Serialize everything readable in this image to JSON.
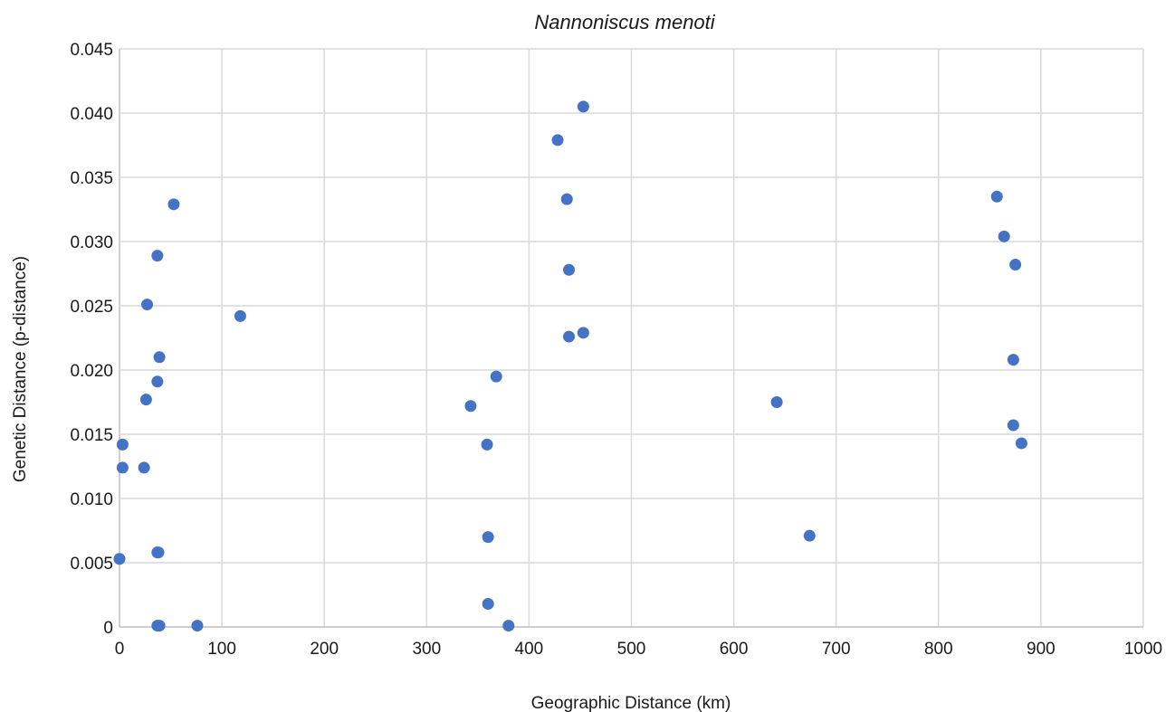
{
  "chart_data": {
    "type": "scatter",
    "title": "Nannoniscus menoti",
    "xlabel": "Geographic Distance (km)",
    "ylabel": "Genetic Distance (p-distance)",
    "xlim": [
      0,
      1000
    ],
    "ylim": [
      0,
      0.045
    ],
    "x_ticks": [
      0,
      100,
      200,
      300,
      400,
      500,
      600,
      700,
      800,
      900,
      1000
    ],
    "x_tick_labels": [
      "0",
      "100",
      "200",
      "300",
      "400",
      "500",
      "600",
      "700",
      "800",
      "900",
      "1000"
    ],
    "y_ticks": [
      0,
      0.005,
      0.01,
      0.015,
      0.02,
      0.025,
      0.03,
      0.035,
      0.04,
      0.045
    ],
    "y_tick_labels": [
      "0",
      "0.005",
      "0.010",
      "0.015",
      "0.020",
      "0.025",
      "0.030",
      "0.035",
      "0.040",
      "0.045"
    ],
    "grid": true,
    "marker_color": "#4472c4",
    "series": [
      {
        "points": [
          {
            "x": 0,
            "y": 0.0053
          },
          {
            "x": 3,
            "y": 0.0142
          },
          {
            "x": 3,
            "y": 0.0124
          },
          {
            "x": 24,
            "y": 0.0124
          },
          {
            "x": 26,
            "y": 0.0177
          },
          {
            "x": 27,
            "y": 0.0251
          },
          {
            "x": 37,
            "y": 0.0289
          },
          {
            "x": 37,
            "y": 0.0191
          },
          {
            "x": 39,
            "y": 0.021
          },
          {
            "x": 37,
            "y": 0.0058
          },
          {
            "x": 38,
            "y": 0.0058
          },
          {
            "x": 37,
            "y": 0.0001
          },
          {
            "x": 39,
            "y": 0.0001
          },
          {
            "x": 53,
            "y": 0.0329
          },
          {
            "x": 76,
            "y": 0.0001
          },
          {
            "x": 118,
            "y": 0.0242
          },
          {
            "x": 343,
            "y": 0.0172
          },
          {
            "x": 359,
            "y": 0.0142
          },
          {
            "x": 360,
            "y": 0.007
          },
          {
            "x": 360,
            "y": 0.0018
          },
          {
            "x": 368,
            "y": 0.0195
          },
          {
            "x": 380,
            "y": 0.0001
          },
          {
            "x": 428,
            "y": 0.0379
          },
          {
            "x": 437,
            "y": 0.0333
          },
          {
            "x": 439,
            "y": 0.0278
          },
          {
            "x": 439,
            "y": 0.0226
          },
          {
            "x": 453,
            "y": 0.0229
          },
          {
            "x": 453,
            "y": 0.0405
          },
          {
            "x": 642,
            "y": 0.0175
          },
          {
            "x": 674,
            "y": 0.0071
          },
          {
            "x": 857,
            "y": 0.0335
          },
          {
            "x": 864,
            "y": 0.0304
          },
          {
            "x": 873,
            "y": 0.0157
          },
          {
            "x": 873,
            "y": 0.0208
          },
          {
            "x": 875,
            "y": 0.0282
          },
          {
            "x": 881,
            "y": 0.0143
          }
        ]
      }
    ]
  }
}
